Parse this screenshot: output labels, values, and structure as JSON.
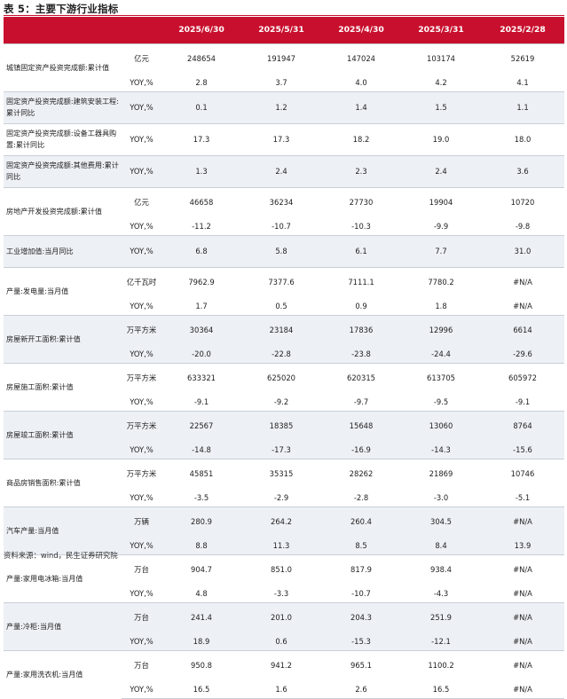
{
  "title": "表 5：主要下游行业指标",
  "header": {
    "blank": "",
    "unit_blank": "",
    "dates": [
      "2025/6/30",
      "2025/5/31",
      "2025/4/30",
      "2025/3/31",
      "2025/2/28"
    ]
  },
  "groups": [
    {
      "name": "城镇固定资产投资完成额:累计值",
      "rows": [
        {
          "unit": "亿元",
          "values": [
            "248654",
            "191947",
            "147024",
            "103174",
            "52619"
          ]
        },
        {
          "unit": "YOY,%",
          "values": [
            "2.8",
            "3.7",
            "4.0",
            "4.2",
            "4.1"
          ]
        }
      ]
    },
    {
      "name": "固定资产投资完成额:建筑安装工程:累计同比",
      "rows": [
        {
          "unit": "YOY,%",
          "values": [
            "0.1",
            "1.2",
            "1.4",
            "1.5",
            "1.1"
          ]
        }
      ]
    },
    {
      "name": "固定资产投资完成额:设备工器具购置:累计同比",
      "rows": [
        {
          "unit": "YOY,%",
          "values": [
            "17.3",
            "17.3",
            "18.2",
            "19.0",
            "18.0"
          ]
        }
      ]
    },
    {
      "name": "固定资产投资完成额:其他费用:累计同比",
      "rows": [
        {
          "unit": "YOY,%",
          "values": [
            "1.3",
            "2.4",
            "2.3",
            "2.4",
            "3.6"
          ]
        }
      ]
    },
    {
      "name": "房地产开发投资完成额:累计值",
      "rows": [
        {
          "unit": "亿元",
          "values": [
            "46658",
            "36234",
            "27730",
            "19904",
            "10720"
          ]
        },
        {
          "unit": "YOY,%",
          "values": [
            "-11.2",
            "-10.7",
            "-10.3",
            "-9.9",
            "-9.8"
          ]
        }
      ]
    },
    {
      "name": "工业增加值:当月同比",
      "rows": [
        {
          "unit": "YOY,%",
          "values": [
            "6.8",
            "5.8",
            "6.1",
            "7.7",
            "31.0"
          ]
        }
      ]
    },
    {
      "name": "产量:发电量:当月值",
      "rows": [
        {
          "unit": "亿千瓦时",
          "values": [
            "7962.9",
            "7377.6",
            "7111.1",
            "7780.2",
            "#N/A"
          ]
        },
        {
          "unit": "YOY,%",
          "values": [
            "1.7",
            "0.5",
            "0.9",
            "1.8",
            "#N/A"
          ]
        }
      ]
    },
    {
      "name": "房屋新开工面积:累计值",
      "rows": [
        {
          "unit": "万平方米",
          "values": [
            "30364",
            "23184",
            "17836",
            "12996",
            "6614"
          ]
        },
        {
          "unit": "YOY,%",
          "values": [
            "-20.0",
            "-22.8",
            "-23.8",
            "-24.4",
            "-29.6"
          ]
        }
      ]
    },
    {
      "name": "房屋施工面积:累计值",
      "rows": [
        {
          "unit": "万平方米",
          "values": [
            "633321",
            "625020",
            "620315",
            "613705",
            "605972"
          ]
        },
        {
          "unit": "YOY,%",
          "values": [
            "-9.1",
            "-9.2",
            "-9.7",
            "-9.5",
            "-9.1"
          ]
        }
      ]
    },
    {
      "name": "房屋竣工面积:累计值",
      "rows": [
        {
          "unit": "万平方米",
          "values": [
            "22567",
            "18385",
            "15648",
            "13060",
            "8764"
          ]
        },
        {
          "unit": "YOY,%",
          "values": [
            "-14.8",
            "-17.3",
            "-16.9",
            "-14.3",
            "-15.6"
          ]
        }
      ]
    },
    {
      "name": "商品房销售面积:累计值",
      "rows": [
        {
          "unit": "万平方米",
          "values": [
            "45851",
            "35315",
            "28262",
            "21869",
            "10746"
          ]
        },
        {
          "unit": "YOY,%",
          "values": [
            "-3.5",
            "-2.9",
            "-2.8",
            "-3.0",
            "-5.1"
          ]
        }
      ]
    },
    {
      "name": "汽车产量:当月值",
      "rows": [
        {
          "unit": "万辆",
          "values": [
            "280.9",
            "264.2",
            "260.4",
            "304.5",
            "#N/A"
          ]
        },
        {
          "unit": "YOY,%",
          "values": [
            "8.8",
            "11.3",
            "8.5",
            "8.4",
            "13.9"
          ]
        }
      ]
    },
    {
      "name": "产量:家用电冰箱:当月值",
      "rows": [
        {
          "unit": "万台",
          "values": [
            "904.7",
            "851.0",
            "817.9",
            "938.4",
            "#N/A"
          ]
        },
        {
          "unit": "YOY,%",
          "values": [
            "4.8",
            "-3.3",
            "-10.7",
            "-4.3",
            "#N/A"
          ]
        }
      ]
    },
    {
      "name": "产量:冷柜:当月值",
      "rows": [
        {
          "unit": "万台",
          "values": [
            "241.4",
            "201.0",
            "204.3",
            "251.9",
            "#N/A"
          ]
        },
        {
          "unit": "YOY,%",
          "values": [
            "18.9",
            "0.6",
            "-15.3",
            "-12.1",
            "#N/A"
          ]
        }
      ]
    },
    {
      "name": "产量:家用洗衣机:当月值",
      "rows": [
        {
          "unit": "万台",
          "values": [
            "950.8",
            "941.2",
            "965.1",
            "1100.2",
            "#N/A"
          ]
        },
        {
          "unit": "YOY,%",
          "values": [
            "16.5",
            "1.6",
            "2.6",
            "16.5",
            "#N/A"
          ]
        }
      ]
    }
  ],
  "source": "资料来源：wind，民生证券研究院"
}
